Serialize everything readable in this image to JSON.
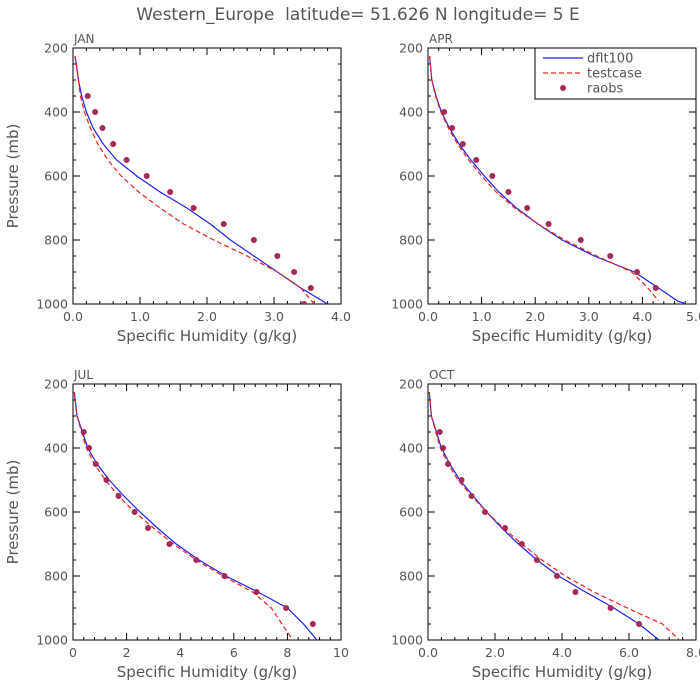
{
  "title": "Western_Europe  latitude= 51.626 N longitude= 5 E",
  "legend": [
    {
      "label": "dflt100",
      "color": "#2020ee",
      "style": "solid"
    },
    {
      "label": "testcase",
      "color": "#ee2020",
      "style": "dashed"
    },
    {
      "label": "raobs",
      "color": "#a52a5a",
      "style": "dots"
    }
  ],
  "chart_data": [
    {
      "type": "line",
      "panel_label": "JAN",
      "xlabel": "Specific Humidity (g/kg)",
      "ylabel": "Pressure (mb)",
      "xlim": [
        0,
        4.0
      ],
      "ylim": [
        1000,
        200
      ],
      "y_inverted": true,
      "xticks": [
        "0.0",
        "1.0",
        "2.0",
        "3.0",
        "4.0"
      ],
      "yticks": [
        "200",
        "400",
        "600",
        "800",
        "1000"
      ],
      "series": [
        {
          "name": "dflt100",
          "color": "#2020ee",
          "style": "solid",
          "points": [
            [
              0.03,
              225
            ],
            [
              0.05,
              250
            ],
            [
              0.08,
              300
            ],
            [
              0.13,
              350
            ],
            [
              0.2,
              400
            ],
            [
              0.3,
              450
            ],
            [
              0.45,
              500
            ],
            [
              0.65,
              550
            ],
            [
              0.95,
              600
            ],
            [
              1.3,
              650
            ],
            [
              1.7,
              700
            ],
            [
              2.05,
              750
            ],
            [
              2.35,
              800
            ],
            [
              2.7,
              850
            ],
            [
              3.05,
              900
            ],
            [
              3.4,
              950
            ],
            [
              3.8,
              1000
            ]
          ]
        },
        {
          "name": "testcase",
          "color": "#ee2020",
          "style": "dashed",
          "points": [
            [
              0.03,
              225
            ],
            [
              0.05,
              250
            ],
            [
              0.08,
              300
            ],
            [
              0.11,
              350
            ],
            [
              0.17,
              400
            ],
            [
              0.26,
              450
            ],
            [
              0.37,
              500
            ],
            [
              0.52,
              550
            ],
            [
              0.72,
              600
            ],
            [
              0.98,
              650
            ],
            [
              1.3,
              700
            ],
            [
              1.65,
              750
            ],
            [
              2.1,
              800
            ],
            [
              2.6,
              850
            ],
            [
              3.05,
              900
            ],
            [
              3.4,
              950
            ],
            [
              3.6,
              1000
            ]
          ]
        },
        {
          "name": "raobs",
          "color": "#a52a5a",
          "style": "dots",
          "points": [
            [
              0.22,
              350
            ],
            [
              0.33,
              400
            ],
            [
              0.44,
              450
            ],
            [
              0.6,
              500
            ],
            [
              0.8,
              550
            ],
            [
              1.1,
              600
            ],
            [
              1.45,
              650
            ],
            [
              1.8,
              700
            ],
            [
              2.25,
              750
            ],
            [
              2.7,
              800
            ],
            [
              3.05,
              850
            ],
            [
              3.3,
              900
            ],
            [
              3.55,
              950
            ],
            [
              3.45,
              1000
            ]
          ]
        }
      ]
    },
    {
      "type": "line",
      "panel_label": "APR",
      "xlabel": "Specific Humidity (g/kg)",
      "ylabel": "",
      "xlim": [
        0,
        5.0
      ],
      "ylim": [
        1000,
        200
      ],
      "y_inverted": true,
      "xticks": [
        "0.0",
        "1.0",
        "2.0",
        "3.0",
        "4.0",
        "5.0"
      ],
      "yticks": [
        "200",
        "400",
        "600",
        "800",
        "1000"
      ],
      "series": [
        {
          "name": "dflt100",
          "color": "#2020ee",
          "style": "solid",
          "points": [
            [
              0.03,
              225
            ],
            [
              0.07,
              300
            ],
            [
              0.15,
              350
            ],
            [
              0.25,
              400
            ],
            [
              0.4,
              450
            ],
            [
              0.58,
              500
            ],
            [
              0.8,
              550
            ],
            [
              1.05,
              600
            ],
            [
              1.32,
              650
            ],
            [
              1.65,
              700
            ],
            [
              2.05,
              750
            ],
            [
              2.5,
              800
            ],
            [
              3.1,
              850
            ],
            [
              3.85,
              900
            ],
            [
              4.3,
              950
            ],
            [
              4.65,
              990
            ],
            [
              5.0,
              1010
            ]
          ]
        },
        {
          "name": "testcase",
          "color": "#ee2020",
          "style": "dashed",
          "points": [
            [
              0.03,
              225
            ],
            [
              0.07,
              300
            ],
            [
              0.14,
              350
            ],
            [
              0.24,
              400
            ],
            [
              0.38,
              450
            ],
            [
              0.55,
              500
            ],
            [
              0.76,
              550
            ],
            [
              1.0,
              600
            ],
            [
              1.27,
              650
            ],
            [
              1.62,
              700
            ],
            [
              2.05,
              750
            ],
            [
              2.55,
              800
            ],
            [
              3.15,
              850
            ],
            [
              3.8,
              900
            ],
            [
              4.1,
              950
            ],
            [
              4.3,
              990
            ]
          ]
        },
        {
          "name": "raobs",
          "color": "#a52a5a",
          "style": "dots",
          "points": [
            [
              0.3,
              400
            ],
            [
              0.45,
              450
            ],
            [
              0.65,
              500
            ],
            [
              0.9,
              550
            ],
            [
              1.2,
              600
            ],
            [
              1.5,
              650
            ],
            [
              1.85,
              700
            ],
            [
              2.25,
              750
            ],
            [
              2.85,
              800
            ],
            [
              3.4,
              850
            ],
            [
              3.9,
              900
            ],
            [
              4.25,
              950
            ]
          ]
        }
      ]
    },
    {
      "type": "line",
      "panel_label": "JUL",
      "xlabel": "Specific Humidity (g/kg)",
      "ylabel": "Pressure (mb)",
      "xlim": [
        0,
        10
      ],
      "ylim": [
        1000,
        200
      ],
      "y_inverted": true,
      "xticks": [
        "0",
        "2",
        "4",
        "6",
        "8",
        "10"
      ],
      "yticks": [
        "200",
        "400",
        "600",
        "800",
        "1000"
      ],
      "series": [
        {
          "name": "dflt100",
          "color": "#2020ee",
          "style": "solid",
          "points": [
            [
              0.05,
              225
            ],
            [
              0.15,
              300
            ],
            [
              0.35,
              350
            ],
            [
              0.55,
              400
            ],
            [
              0.9,
              450
            ],
            [
              1.35,
              500
            ],
            [
              1.9,
              550
            ],
            [
              2.5,
              600
            ],
            [
              3.15,
              650
            ],
            [
              3.85,
              700
            ],
            [
              4.7,
              750
            ],
            [
              5.7,
              800
            ],
            [
              6.9,
              850
            ],
            [
              8.0,
              900
            ],
            [
              8.6,
              950
            ],
            [
              9.1,
              1000
            ]
          ]
        },
        {
          "name": "testcase",
          "color": "#ee2020",
          "style": "dashed",
          "points": [
            [
              0.05,
              225
            ],
            [
              0.15,
              300
            ],
            [
              0.32,
              350
            ],
            [
              0.5,
              400
            ],
            [
              0.8,
              450
            ],
            [
              1.2,
              500
            ],
            [
              1.7,
              550
            ],
            [
              2.3,
              600
            ],
            [
              3.0,
              650
            ],
            [
              3.75,
              700
            ],
            [
              4.6,
              750
            ],
            [
              5.6,
              800
            ],
            [
              6.7,
              850
            ],
            [
              7.4,
              900
            ],
            [
              7.8,
              950
            ],
            [
              8.2,
              1000
            ]
          ]
        },
        {
          "name": "raobs",
          "color": "#a52a5a",
          "style": "dots",
          "points": [
            [
              0.4,
              350
            ],
            [
              0.6,
              400
            ],
            [
              0.85,
              450
            ],
            [
              1.25,
              500
            ],
            [
              1.7,
              550
            ],
            [
              2.3,
              600
            ],
            [
              2.8,
              650
            ],
            [
              3.6,
              700
            ],
            [
              4.6,
              750
            ],
            [
              5.65,
              800
            ],
            [
              6.85,
              850
            ],
            [
              7.95,
              900
            ],
            [
              8.95,
              950
            ]
          ]
        }
      ]
    },
    {
      "type": "line",
      "panel_label": "OCT",
      "xlabel": "Specific Humidity (g/kg)",
      "ylabel": "",
      "xlim": [
        0,
        8.0
      ],
      "ylim": [
        1000,
        200
      ],
      "y_inverted": true,
      "xticks": [
        "0.0",
        "2.0",
        "4.0",
        "6.0",
        "8.0"
      ],
      "yticks": [
        "200",
        "400",
        "600",
        "800",
        "1000"
      ],
      "series": [
        {
          "name": "dflt100",
          "color": "#2020ee",
          "style": "solid",
          "points": [
            [
              0.04,
              225
            ],
            [
              0.1,
              300
            ],
            [
              0.25,
              350
            ],
            [
              0.4,
              400
            ],
            [
              0.65,
              450
            ],
            [
              0.95,
              500
            ],
            [
              1.35,
              550
            ],
            [
              1.75,
              600
            ],
            [
              2.2,
              650
            ],
            [
              2.7,
              700
            ],
            [
              3.25,
              750
            ],
            [
              3.9,
              800
            ],
            [
              4.7,
              850
            ],
            [
              5.55,
              900
            ],
            [
              6.3,
              950
            ],
            [
              6.9,
              1000
            ]
          ]
        },
        {
          "name": "testcase",
          "color": "#ee2020",
          "style": "dashed",
          "points": [
            [
              0.04,
              225
            ],
            [
              0.1,
              300
            ],
            [
              0.23,
              350
            ],
            [
              0.37,
              400
            ],
            [
              0.6,
              450
            ],
            [
              0.9,
              500
            ],
            [
              1.3,
              550
            ],
            [
              1.75,
              600
            ],
            [
              2.25,
              650
            ],
            [
              2.8,
              700
            ],
            [
              3.4,
              750
            ],
            [
              4.1,
              800
            ],
            [
              4.95,
              850
            ],
            [
              5.95,
              900
            ],
            [
              7.0,
              950
            ],
            [
              7.5,
              1000
            ]
          ]
        },
        {
          "name": "raobs",
          "color": "#a52a5a",
          "style": "dots",
          "points": [
            [
              0.35,
              350
            ],
            [
              0.45,
              400
            ],
            [
              0.6,
              450
            ],
            [
              1.0,
              500
            ],
            [
              1.3,
              550
            ],
            [
              1.7,
              600
            ],
            [
              2.3,
              650
            ],
            [
              2.8,
              700
            ],
            [
              3.25,
              750
            ],
            [
              3.85,
              800
            ],
            [
              4.4,
              850
            ],
            [
              5.45,
              900
            ],
            [
              6.3,
              950
            ]
          ]
        }
      ]
    }
  ]
}
